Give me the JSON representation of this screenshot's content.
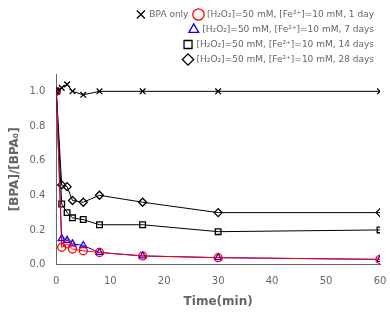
{
  "chart_data": {
    "type": "line",
    "x": [
      0,
      1,
      2,
      3,
      5,
      8,
      16,
      30,
      60
    ],
    "series": [
      {
        "name": "BPA only",
        "color": "#000000",
        "marker": "x",
        "values": [
          1.0,
          1.02,
          1.04,
          1.0,
          0.98,
          1.0,
          1.0,
          1.0,
          1.0
        ]
      },
      {
        "name": "[H₂O₂]=50 mM, [Fe²⁺]=10 mM, 1 day",
        "color": "#ff0000",
        "marker": "circle",
        "values": [
          1.0,
          0.1,
          0.12,
          0.09,
          0.08,
          0.07,
          0.05,
          0.04,
          0.03
        ]
      },
      {
        "name": "[H₂O₂]=50 mM, [Fe²⁺]=10 mM, 7 days",
        "color": "#0000ff",
        "marker": "triangle",
        "values": [
          1.0,
          0.15,
          0.14,
          0.12,
          0.11,
          0.07,
          0.05,
          0.04,
          0.03
        ]
      },
      {
        "name": "[H₂O₂]=50 mM, [Fe²⁺]=10 mM, 14 days",
        "color": "#000000",
        "marker": "square",
        "values": [
          1.0,
          0.35,
          0.3,
          0.27,
          0.26,
          0.23,
          0.23,
          0.19,
          0.2
        ]
      },
      {
        "name": "[H₂O₂]=50 mM, [Fe²⁺]=10 mM, 28 days",
        "color": "#000000",
        "marker": "diamond",
        "values": [
          1.0,
          0.46,
          0.45,
          0.37,
          0.36,
          0.4,
          0.36,
          0.3,
          0.3
        ]
      }
    ],
    "x_label": "Time(min)",
    "y_label": "[BPA]/[BPA₀]",
    "xlim": [
      0,
      60
    ],
    "ylim": [
      0.0,
      1.1
    ],
    "xticks": [
      0,
      10,
      20,
      30,
      40,
      50,
      60
    ],
    "yticks": [
      {
        "value": 0.0,
        "label": "0.0"
      },
      0.2,
      0.4,
      0.6,
      0.8,
      {
        "value": 1.0,
        "label": "1.0"
      }
    ],
    "grid": false,
    "legend": "upper right"
  }
}
